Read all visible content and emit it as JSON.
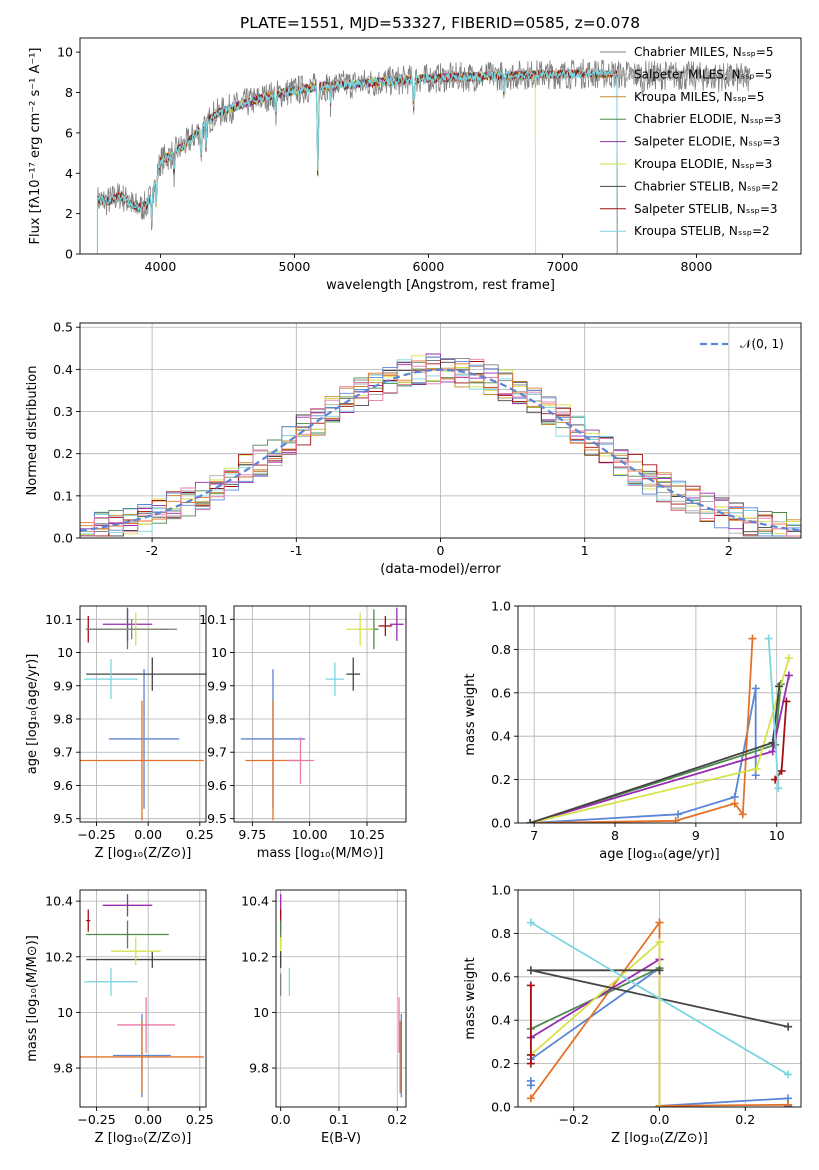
{
  "figure": {
    "title": "PLATE=1551, MJD=53327, FIBERID=0585, z=0.078"
  },
  "colors": {
    "Chabrier MILES": "#808080",
    "Salpeter MILES": "#aaaaaa",
    "Kroupa MILES": "#c58a2a",
    "Chabrier ELODIE": "#4e8a4e",
    "Salpeter ELODIE": "#9a2bb0",
    "Kroupa ELODIE": "#d6e24a",
    "Chabrier STELIB": "#444444",
    "Salpeter STELIB": "#a01010",
    "Kroupa STELIB": "#7ad6e0",
    "blue": "#5b86d6",
    "orange": "#e4732a",
    "pink": "#e87aa8",
    "normal": "#5b86d6"
  },
  "chart_data": [
    {
      "id": "spectrum",
      "type": "line",
      "title": "PLATE=1551, MJD=53327, FIBERID=0585, z=0.078",
      "xlabel": "wavelength [Angstrom, rest frame]",
      "ylabel": "Flux [fλ10⁻¹⁷ erg cm⁻² s⁻¹ A⁻¹]",
      "xlim": [
        3400,
        8780
      ],
      "ylim": [
        0,
        10.7
      ],
      "xticks": [
        4000,
        5000,
        6000,
        7000,
        8000
      ],
      "yticks": [
        0,
        2,
        4,
        6,
        8,
        10
      ],
      "grid": false,
      "legend_position": "top-right",
      "legend": [
        "Chabrier MILES, Nₛₛₚ=5",
        "Salpeter MILES, Nₛₛₚ=5",
        "Kroupa MILES, Nₛₛₚ=5",
        "Chabrier ELODIE, Nₛₛₚ=3",
        "Salpeter ELODIE, Nₛₛₚ=3",
        "Kroupa ELODIE, Nₛₛₚ=3",
        "Chabrier STELIB, Nₛₛₚ=2",
        "Salpeter STELIB, Nₛₛₚ=3",
        "Kroupa STELIB, Nₛₛₚ=2"
      ],
      "legend_series": [
        "Chabrier MILES",
        "Salpeter MILES",
        "Kroupa MILES",
        "Chabrier ELODIE",
        "Salpeter ELODIE",
        "Kroupa ELODIE",
        "Chabrier STELIB",
        "Salpeter STELIB",
        "Kroupa STELIB"
      ],
      "continuum": {
        "x": [
          3520,
          3600,
          3700,
          3800,
          3850,
          3900,
          3950,
          4000,
          4100,
          4200,
          4300,
          4400,
          4600,
          4800,
          5000,
          5200,
          5400,
          5600,
          5800,
          6000,
          6200,
          6400,
          6600,
          6800,
          7000,
          7200,
          7400,
          7600,
          7800,
          8000,
          8200,
          8400
        ],
        "y": [
          2.7,
          2.6,
          2.9,
          2.4,
          2.3,
          2.4,
          3.3,
          4.6,
          5.0,
          5.5,
          6.2,
          6.9,
          7.4,
          7.8,
          8.1,
          8.3,
          8.4,
          8.5,
          8.6,
          8.7,
          8.75,
          8.8,
          8.85,
          8.9,
          8.9,
          8.95,
          8.9,
          8.85,
          8.85,
          8.8,
          8.75,
          8.7
        ]
      },
      "lines": [
        [
          3934,
          -1.5
        ],
        [
          3969,
          -1.3
        ],
        [
          4102,
          -1.0
        ],
        [
          4304,
          -1.5
        ],
        [
          4340,
          -1.2
        ],
        [
          4861,
          -1.0
        ],
        [
          5175,
          -4.5
        ],
        [
          5270,
          -0.8
        ],
        [
          5890,
          -1.4
        ],
        [
          6563,
          -0.9
        ],
        [
          7600,
          -0.8
        ]
      ],
      "extents": {
        "Chabrier MILES": [
          3530,
          8400
        ],
        "Salpeter MILES": [
          3530,
          8400
        ],
        "Kroupa MILES": [
          3530,
          7410
        ],
        "Chabrier ELODIE": [
          4000,
          6800
        ],
        "Salpeter ELODIE": [
          4000,
          6800
        ],
        "Kroupa ELODIE": [
          4000,
          6800
        ],
        "Chabrier STELIB": [
          3530,
          7410
        ],
        "Salpeter STELIB": [
          3530,
          7410
        ],
        "Kroupa STELIB": [
          3530,
          7410
        ]
      }
    },
    {
      "id": "residuals",
      "type": "bar",
      "xlabel": "(data-model)/error",
      "ylabel": "Normed distribution",
      "xlim": [
        -2.5,
        2.5
      ],
      "ylim": [
        0,
        0.51
      ],
      "xticks": [
        -2,
        -1,
        0,
        1,
        2
      ],
      "yticks": [
        0.0,
        0.1,
        0.2,
        0.3,
        0.4,
        0.5
      ],
      "grid": true,
      "legend_position": "top-right",
      "legend": [
        "𝒩(0, 1)"
      ],
      "bin_width": 0.1,
      "series_colors": [
        "#808080",
        "#aaaaaa",
        "#c58a2a",
        "#4e8a4e",
        "#9a2bb0",
        "#d6e24a",
        "#444444",
        "#a01010",
        "#7ad6e0",
        "#5b86d6",
        "#e4732a",
        "#e87aa8"
      ]
    },
    {
      "id": "age_vs_Z",
      "type": "scatter",
      "xlabel": "Z [log₁₀(Z/Z⊙)]",
      "ylabel": "age  [log₁₀(age/yr)]",
      "xlim": [
        -0.33,
        0.28
      ],
      "ylim": [
        9.49,
        10.14
      ],
      "xticks": [
        -0.25,
        0.0,
        0.25
      ],
      "xticklabels": [
        "−0.25",
        "0.00",
        "0.25"
      ],
      "yticks": [
        9.5,
        9.6,
        9.7,
        9.8,
        9.9,
        10.0,
        10.1
      ],
      "grid": true,
      "points": [
        {
          "color": "#5b86d6",
          "x": -0.02,
          "xerr": 0.17,
          "y": 9.74,
          "yerr": 0.21
        },
        {
          "color": "#e4732a",
          "x": -0.03,
          "xerr": 0.3,
          "y": 9.675,
          "yerr": 0.18
        },
        {
          "color": "#444444",
          "x": 0.02,
          "xerr": 0.32,
          "y": 9.935,
          "yerr": 0.05
        },
        {
          "color": "#7ad6e0",
          "x": -0.18,
          "xerr": 0.13,
          "y": 9.92,
          "yerr": 0.06
        },
        {
          "color": "#a01010",
          "x": -0.29,
          "xerr": 0.01,
          "y": 10.07,
          "yerr": 0.04
        },
        {
          "color": "#4e8a4e",
          "x": -0.1,
          "xerr": 0.2,
          "y": 10.07,
          "yerr": 0.06
        },
        {
          "color": "#9a2bb0",
          "x": -0.1,
          "xerr": 0.12,
          "y": 10.085,
          "yerr": 0.05
        },
        {
          "color": "#d6e24a",
          "x": -0.06,
          "xerr": 0.12,
          "y": 10.07,
          "yerr": 0.05
        },
        {
          "color": "#808080",
          "x": -0.08,
          "xerr": 0.22,
          "y": 10.07,
          "yerr": 0.03
        }
      ]
    },
    {
      "id": "age_vs_mass",
      "type": "scatter",
      "xlabel": "mass [log₁₀(M/M⊙)]",
      "ylabel": "",
      "xlim": [
        9.67,
        10.42
      ],
      "ylim": [
        9.49,
        10.14
      ],
      "xticks": [
        9.75,
        10.0,
        10.25
      ],
      "xticklabels": [
        "9.75",
        "10.00",
        "10.25"
      ],
      "yticks": [
        9.5,
        9.6,
        9.7,
        9.8,
        9.9,
        10.0,
        10.1
      ],
      "grid": true,
      "points": [
        {
          "color": "#5b86d6",
          "x": 9.84,
          "xerr": 0.14,
          "y": 9.74,
          "yerr": 0.21
        },
        {
          "color": "#e4732a",
          "x": 9.84,
          "xerr": 0.12,
          "y": 9.675,
          "yerr": 0.18
        },
        {
          "color": "#e87aa8",
          "x": 9.96,
          "xerr": 0.06,
          "y": 9.675,
          "yerr": 0.07
        },
        {
          "color": "#444444",
          "x": 10.19,
          "xerr": 0.03,
          "y": 9.935,
          "yerr": 0.05
        },
        {
          "color": "#7ad6e0",
          "x": 10.11,
          "xerr": 0.04,
          "y": 9.92,
          "yerr": 0.05
        },
        {
          "color": "#a01010",
          "x": 10.33,
          "xerr": 0.03,
          "y": 10.08,
          "yerr": 0.03
        },
        {
          "color": "#4e8a4e",
          "x": 10.28,
          "xerr": 0.02,
          "y": 10.07,
          "yerr": 0.06
        },
        {
          "color": "#9a2bb0",
          "x": 10.38,
          "xerr": 0.03,
          "y": 10.085,
          "yerr": 0.05
        },
        {
          "color": "#d6e24a",
          "x": 10.22,
          "xerr": 0.06,
          "y": 10.07,
          "yerr": 0.05
        }
      ]
    },
    {
      "id": "weight_vs_age",
      "type": "line",
      "xlabel": "age  [log₁₀(age/yr)]",
      "ylabel": "mass weight",
      "xlim": [
        6.8,
        10.3
      ],
      "ylim": [
        0,
        1.0
      ],
      "xticks": [
        7,
        8,
        9,
        10
      ],
      "yticks": [
        0.0,
        0.2,
        0.4,
        0.6,
        0.8,
        1.0
      ],
      "grid": true,
      "series": [
        {
          "color": "#5b86d6",
          "x": [
            6.95,
            8.78,
            9.48,
            9.74,
            9.74
          ],
          "y": [
            0.0,
            0.04,
            0.12,
            0.62,
            0.22
          ]
        },
        {
          "color": "#e4732a",
          "x": [
            6.95,
            8.75,
            9.48,
            9.58,
            9.7
          ],
          "y": [
            0.0,
            0.01,
            0.09,
            0.04,
            0.85
          ]
        },
        {
          "color": "#4e8a4e",
          "x": [
            6.95,
            9.98,
            10.05
          ],
          "y": [
            0.0,
            0.36,
            0.64
          ]
        },
        {
          "color": "#9a2bb0",
          "x": [
            6.95,
            9.95,
            10.15
          ],
          "y": [
            0.0,
            0.33,
            0.68
          ]
        },
        {
          "color": "#d6e24a",
          "x": [
            6.95,
            9.75,
            10.15
          ],
          "y": [
            0.0,
            0.25,
            0.76
          ]
        },
        {
          "color": "#444444",
          "x": [
            6.95,
            9.95,
            10.03
          ],
          "y": [
            0.0,
            0.37,
            0.63
          ]
        },
        {
          "color": "#a01010",
          "x": [
            9.98,
            10.06,
            10.12
          ],
          "y": [
            0.2,
            0.24,
            0.56
          ]
        },
        {
          "color": "#7ad6e0",
          "x": [
            9.9,
            10.02
          ],
          "y": [
            0.85,
            0.16
          ]
        }
      ]
    },
    {
      "id": "mass_vs_Z",
      "type": "scatter",
      "xlabel": "Z [log₁₀(Z/Z⊙)]",
      "ylabel": "mass [log₁₀(M/M⊙)]",
      "xlim": [
        -0.33,
        0.28
      ],
      "ylim": [
        9.66,
        10.44
      ],
      "xticks": [
        -0.25,
        0.0,
        0.25
      ],
      "xticklabels": [
        "−0.25",
        "0.00",
        "0.25"
      ],
      "yticks": [
        9.8,
        10.0,
        10.2,
        10.4
      ],
      "grid": true,
      "points": [
        {
          "color": "#5b86d6",
          "x": -0.03,
          "xerr": 0.14,
          "y": 9.845,
          "yerr": 0.15
        },
        {
          "color": "#e4732a",
          "x": -0.03,
          "xerr": 0.3,
          "y": 9.84,
          "yerr": 0.13
        },
        {
          "color": "#e87aa8",
          "x": -0.01,
          "xerr": 0.14,
          "y": 9.955,
          "yerr": 0.1
        },
        {
          "color": "#444444",
          "x": 0.02,
          "xerr": 0.32,
          "y": 10.19,
          "yerr": 0.03
        },
        {
          "color": "#7ad6e0",
          "x": -0.18,
          "xerr": 0.13,
          "y": 10.11,
          "yerr": 0.05
        },
        {
          "color": "#a01010",
          "x": -0.29,
          "xerr": 0.01,
          "y": 10.33,
          "yerr": 0.04
        },
        {
          "color": "#4e8a4e",
          "x": -0.1,
          "xerr": 0.2,
          "y": 10.28,
          "yerr": 0.05
        },
        {
          "color": "#9a2bb0",
          "x": -0.1,
          "xerr": 0.12,
          "y": 10.385,
          "yerr": 0.04
        },
        {
          "color": "#d6e24a",
          "x": -0.06,
          "xerr": 0.12,
          "y": 10.22,
          "yerr": 0.05
        }
      ]
    },
    {
      "id": "mass_vs_ebv",
      "type": "scatter",
      "xlabel": "E(B-V)",
      "ylabel": "",
      "xlim": [
        -0.008,
        0.215
      ],
      "ylim": [
        9.66,
        10.44
      ],
      "xticks": [
        0.0,
        0.1,
        0.2
      ],
      "xticklabels": [
        "0.0",
        "0.1",
        "0.2"
      ],
      "yticks": [
        9.8,
        10.0,
        10.2,
        10.4
      ],
      "grid": true,
      "points": [
        {
          "color": "#9a2bb0",
          "x": 0.0,
          "xerr": 0.0,
          "y": 10.385,
          "yerr": 0.04
        },
        {
          "color": "#a01010",
          "x": 0.0,
          "xerr": 0.0,
          "y": 10.33,
          "yerr": 0.04
        },
        {
          "color": "#4e8a4e",
          "x": 0.0,
          "xerr": 0.0,
          "y": 10.28,
          "yerr": 0.05
        },
        {
          "color": "#d6e24a",
          "x": 0.0,
          "xerr": 0.0,
          "y": 10.22,
          "yerr": 0.05
        },
        {
          "color": "#444444",
          "x": 0.0,
          "xerr": 0.0,
          "y": 10.19,
          "yerr": 0.03
        },
        {
          "color": "#808080",
          "x": 0.0,
          "xerr": 0.0,
          "y": 10.1,
          "yerr": 0.04
        },
        {
          "color": "#7ad6e0",
          "x": 0.015,
          "xerr": 0.0,
          "y": 10.11,
          "yerr": 0.05
        },
        {
          "color": "#e87aa8",
          "x": 0.203,
          "xerr": 0.0,
          "y": 9.955,
          "yerr": 0.1
        },
        {
          "color": "#e4732a",
          "x": 0.205,
          "xerr": 0.0,
          "y": 9.84,
          "yerr": 0.13
        },
        {
          "color": "#5b86d6",
          "x": 0.207,
          "xerr": 0.0,
          "y": 9.845,
          "yerr": 0.15
        }
      ]
    },
    {
      "id": "weight_vs_Z",
      "type": "line",
      "xlabel": "Z [log₁₀(Z/Z⊙)]",
      "ylabel": "mass weight",
      "xlim": [
        -0.33,
        0.33
      ],
      "ylim": [
        0,
        1.0
      ],
      "xticks": [
        -0.2,
        0.0,
        0.2
      ],
      "xticklabels": [
        "−0.2",
        "0.0",
        "0.2"
      ],
      "yticks": [
        0.0,
        0.2,
        0.4,
        0.6,
        0.8,
        1.0
      ],
      "grid": true,
      "series": [
        {
          "color": "#5b86d6",
          "x": [
            -0.3,
            0.0,
            0.0,
            0.3,
            0.3
          ],
          "y": [
            0.22,
            0.64,
            0.005,
            0.04,
            0.005
          ]
        },
        {
          "color": "#e4732a",
          "x": [
            -0.3,
            0.0,
            0.0,
            0.3
          ],
          "y": [
            0.04,
            0.85,
            0.005,
            0.01
          ]
        },
        {
          "color": "#4e8a4e",
          "x": [
            -0.3,
            0.0,
            0.0
          ],
          "y": [
            0.36,
            0.64,
            0.0
          ]
        },
        {
          "color": "#9a2bb0",
          "x": [
            -0.3,
            0.0,
            0.0
          ],
          "y": [
            0.32,
            0.68,
            0.0
          ]
        },
        {
          "color": "#d6e24a",
          "x": [
            -0.3,
            0.0,
            0.0
          ],
          "y": [
            0.24,
            0.76,
            0.0
          ]
        },
        {
          "color": "#444444",
          "x": [
            0.3,
            -0.3,
            0.0
          ],
          "y": [
            0.37,
            0.63,
            0.63
          ]
        },
        {
          "color": "#a01010",
          "x": [
            -0.3,
            -0.3,
            -0.3
          ],
          "y": [
            0.2,
            0.24,
            0.56
          ]
        },
        {
          "color": "#7ad6e0",
          "x": [
            -0.3,
            0.3
          ],
          "y": [
            0.85,
            0.15
          ]
        },
        {
          "color": "#5b86d6",
          "x": [
            -0.3,
            -0.3
          ],
          "y": [
            0.1,
            0.12
          ]
        }
      ]
    }
  ]
}
